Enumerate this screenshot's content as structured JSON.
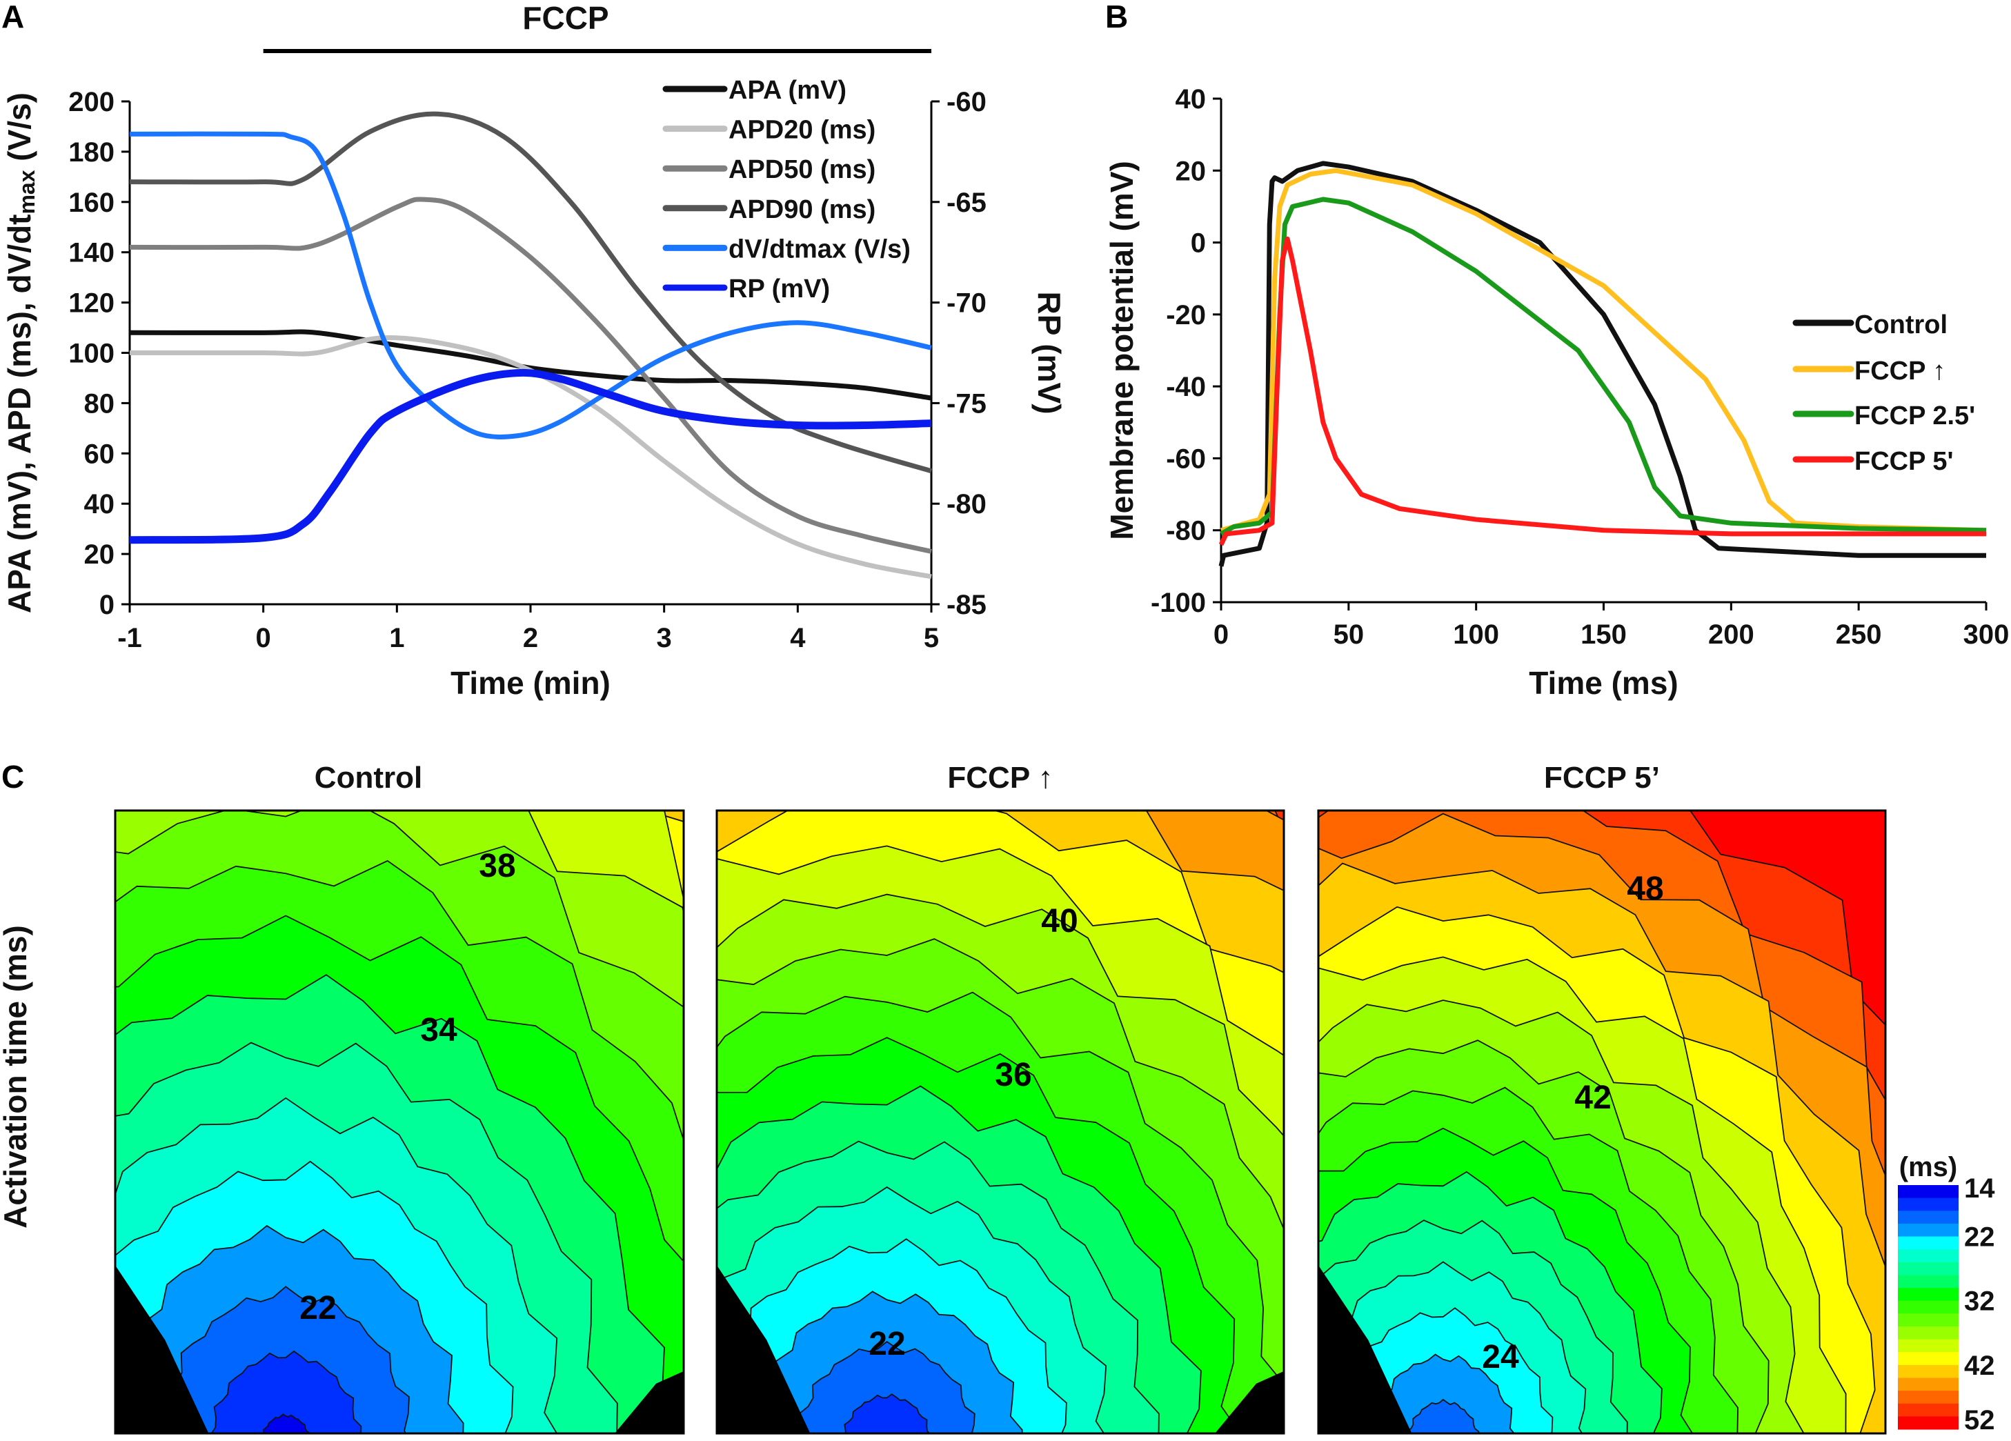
{
  "chart_data": [
    {
      "panel": "A",
      "type": "line",
      "annotation": "FCCP",
      "annotation_range": [
        0,
        5
      ],
      "xlabel": "Time (min)",
      "ylabel": "APA (mV), APD (ms), dV/dtmax (V/s)",
      "ylabel_parts": [
        "APA (mV), APD (ms), dV/dt",
        "max",
        " (V/s)"
      ],
      "y2label": "RP (mV)",
      "xlim": [
        -1,
        5
      ],
      "ylim": [
        0,
        200
      ],
      "y2lim": [
        -85,
        -60
      ],
      "xticks": [
        -1,
        0,
        1,
        2,
        3,
        4,
        5
      ],
      "yticks": [
        0,
        20,
        40,
        60,
        80,
        100,
        120,
        140,
        160,
        180,
        200
      ],
      "y2ticks": [
        -60,
        -65,
        -70,
        -75,
        -80,
        -85
      ],
      "grid": false,
      "legend": "top-right",
      "series": [
        {
          "name": "APA (mV)",
          "color": "#111111",
          "axis": "left",
          "x": [
            -1,
            0,
            0.4,
            1,
            1.5,
            2,
            2.5,
            3,
            3.5,
            4,
            4.5,
            5
          ],
          "y": [
            108,
            108,
            108,
            103,
            99,
            94,
            91,
            89,
            89,
            88,
            86,
            82
          ]
        },
        {
          "name": "APD20 (ms)",
          "color": "#c0c0c0",
          "axis": "left",
          "x": [
            -1,
            0,
            0.4,
            0.9,
            1.5,
            2,
            2.5,
            3,
            3.5,
            4,
            4.5,
            5
          ],
          "y": [
            100,
            100,
            100,
            106,
            102,
            93,
            78,
            57,
            38,
            24,
            16,
            11
          ]
        },
        {
          "name": "APD50 (ms)",
          "color": "#7f7f7f",
          "axis": "left",
          "x": [
            -1,
            0,
            0.4,
            1,
            1.2,
            1.5,
            2,
            2.5,
            3,
            3.5,
            4,
            4.5,
            5
          ],
          "y": [
            142,
            142,
            143,
            158,
            161,
            157,
            138,
            112,
            82,
            52,
            35,
            27,
            21
          ]
        },
        {
          "name": "APD90 (ms)",
          "color": "#555555",
          "axis": "left",
          "x": [
            -1,
            0,
            0.3,
            0.8,
            1.3,
            1.8,
            2.3,
            2.8,
            3.3,
            3.8,
            4.3,
            5
          ],
          "y": [
            168,
            168,
            169,
            188,
            195,
            186,
            160,
            125,
            95,
            75,
            64,
            53
          ]
        },
        {
          "name": "dV/dtmax (V/s)",
          "color": "#1a75ff",
          "axis": "left",
          "x": [
            -1,
            0,
            0.2,
            0.4,
            0.6,
            0.8,
            1,
            1.3,
            1.6,
            1.9,
            2.2,
            2.6,
            3,
            3.5,
            4,
            4.5,
            5
          ],
          "y": [
            187,
            187,
            186,
            180,
            155,
            120,
            95,
            78,
            68,
            67,
            72,
            85,
            98,
            108,
            112,
            108,
            102
          ]
        },
        {
          "name": "RP (mV)",
          "color": "#0a1bf0",
          "axis": "right",
          "x": [
            -1,
            0,
            0.3,
            0.5,
            0.8,
            1,
            1.5,
            1.9,
            2.2,
            2.6,
            3,
            3.5,
            4,
            4.5,
            5
          ],
          "y": [
            -81.8,
            -81.7,
            -81,
            -79.4,
            -76.5,
            -75.4,
            -74,
            -73.5,
            -73.75,
            -74.6,
            -75.4,
            -75.9,
            -76.1,
            -76.1,
            -76
          ]
        }
      ]
    },
    {
      "panel": "B",
      "type": "line",
      "xlabel": "Time (ms)",
      "ylabel": "Membrane potential (mV)",
      "xlim": [
        0,
        300
      ],
      "ylim": [
        -100,
        40
      ],
      "xticks": [
        0,
        50,
        100,
        150,
        200,
        250,
        300
      ],
      "yticks": [
        -100,
        -80,
        -60,
        -40,
        -20,
        0,
        20,
        40
      ],
      "grid": false,
      "legend": "right",
      "series": [
        {
          "name": "Control",
          "color": "#111111",
          "x": [
            0,
            1,
            15,
            18,
            19,
            20,
            21,
            24,
            30,
            40,
            50,
            75,
            100,
            125,
            150,
            170,
            180,
            186,
            195,
            250,
            300
          ],
          "y": [
            -90,
            -87,
            -85,
            -78,
            5,
            17,
            18,
            17,
            20,
            22,
            21,
            17,
            9,
            0,
            -20,
            -45,
            -65,
            -80,
            -85,
            -87,
            -87
          ]
        },
        {
          "name": "FCCP ↑",
          "color": "#ffbf1f",
          "x": [
            0,
            5,
            15,
            19,
            21,
            23,
            26,
            35,
            45,
            75,
            100,
            150,
            190,
            205,
            215,
            225,
            250,
            300
          ],
          "y": [
            -80,
            -79,
            -77,
            -70,
            -10,
            10,
            16,
            19,
            20,
            16,
            8,
            -12,
            -38,
            -55,
            -72,
            -78,
            -79,
            -80
          ]
        },
        {
          "name": "FCCP 2.5'",
          "color": "#1a9a1a",
          "x": [
            0,
            5,
            15,
            20,
            23,
            25,
            28,
            40,
            50,
            75,
            100,
            140,
            160,
            170,
            180,
            200,
            250,
            300
          ],
          "y": [
            -81,
            -79,
            -78,
            -75,
            -20,
            5,
            10,
            12,
            11,
            3,
            -8,
            -30,
            -50,
            -68,
            -76,
            -78,
            -79.5,
            -80
          ]
        },
        {
          "name": "FCCP 5'",
          "color": "#ff1a1a",
          "x": [
            0,
            2,
            15,
            20,
            22,
            24,
            26,
            28,
            35,
            40,
            45,
            55,
            70,
            100,
            150,
            200,
            300
          ],
          "y": [
            -84,
            -81,
            -80,
            -78,
            -40,
            -5,
            1,
            -5,
            -30,
            -50,
            -60,
            -70,
            -74,
            -77,
            -80,
            -81,
            -81
          ]
        }
      ]
    },
    {
      "panel": "C",
      "type": "heatmap",
      "ylabel": "Activation time (ms)",
      "colorbar": {
        "unit": "(ms)",
        "min": 14,
        "max": 52,
        "step": 2,
        "ticks": [
          14,
          22,
          32,
          42,
          52
        ],
        "colors": [
          "#0000f0",
          "#0030ff",
          "#0066ff",
          "#0099ff",
          "#00ffff",
          "#00ffcc",
          "#00ff99",
          "#00ff66",
          "#00ff00",
          "#33ff00",
          "#66ff00",
          "#99ff00",
          "#ccff00",
          "#ffff00",
          "#ffcc00",
          "#ff9900",
          "#ff6600",
          "#ff3300",
          "#ff0000"
        ]
      },
      "maps": [
        {
          "title": "Control",
          "min_value": 15,
          "contour_labels": [
            "38",
            "34",
            "22"
          ]
        },
        {
          "title": "FCCP ↑",
          "min_value": 16,
          "contour_labels": [
            "40",
            "36",
            "22"
          ]
        },
        {
          "title": "FCCP 5’",
          "min_value": 18,
          "contour_labels": [
            "48",
            "42",
            "24"
          ]
        }
      ]
    }
  ],
  "panel_labels": [
    "A",
    "B",
    "C"
  ]
}
